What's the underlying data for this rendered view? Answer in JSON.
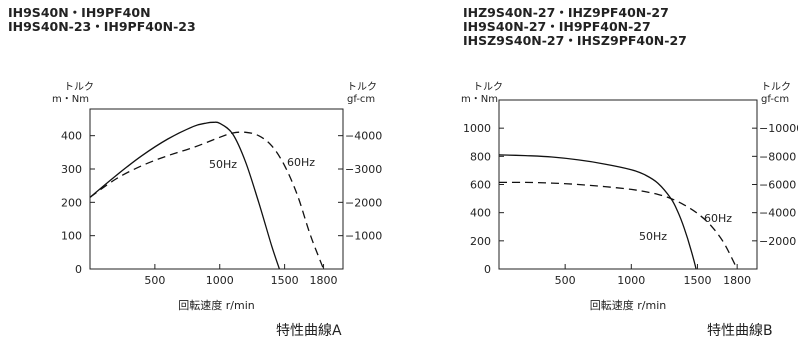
{
  "chart_data": [
    {
      "type": "line",
      "model_text": "IH9S40N・IH9PF40N\nIH9S40N-23・IH9PF40N-23",
      "caption": "特性曲線A",
      "xlabel": "回転速度 r/min",
      "y_left_label": [
        "トルク",
        "m・Nm"
      ],
      "y_right_label": [
        "トルク",
        "gf-cm"
      ],
      "x_ticks": [
        500,
        1000,
        1500,
        1800
      ],
      "x_tick_labels": [
        "500",
        "1000",
        "1500",
        "1800"
      ],
      "y_left_ticks": [
        0,
        100,
        200,
        300,
        400
      ],
      "y_left_tick_labels": [
        "0",
        "100",
        "200",
        "300",
        "400"
      ],
      "y_right_ticks": [
        1000,
        2000,
        3000,
        4000
      ],
      "y_right_tick_labels": [
        "1000",
        "2000",
        "3000",
        "4000"
      ],
      "xlim": [
        0,
        1950
      ],
      "ylim": [
        0,
        480
      ],
      "y_right_factor": 10,
      "series": [
        {
          "name": "50Hz",
          "style": "solid",
          "x": [
            0,
            200,
            400,
            600,
            800,
            900,
            950,
            1000,
            1100,
            1200,
            1300,
            1400,
            1460
          ],
          "y": [
            215,
            280,
            340,
            390,
            428,
            438,
            440,
            437,
            405,
            320,
            200,
            70,
            0
          ]
        },
        {
          "name": "60Hz",
          "style": "dashed",
          "x": [
            0,
            200,
            400,
            600,
            800,
            1000,
            1100,
            1200,
            1300,
            1400,
            1500,
            1600,
            1700,
            1800
          ],
          "y": [
            215,
            270,
            310,
            340,
            365,
            395,
            408,
            410,
            400,
            370,
            310,
            220,
            100,
            0
          ]
        }
      ]
    },
    {
      "type": "line",
      "model_text": "IHZ9S40N-27・IHZ9PF40N-27\nIH9S40N-27・IH9PF40N-27\nIHSZ9S40N-27・IHSZ9PF40N-27",
      "caption": "特性曲線B",
      "xlabel": "回転速度 r/min",
      "y_left_label": [
        "トルク",
        "m・Nm"
      ],
      "y_right_label": [
        "トルク",
        "gf-cm"
      ],
      "x_ticks": [
        500,
        1000,
        1500,
        1800
      ],
      "x_tick_labels": [
        "500",
        "1000",
        "1500",
        "1800"
      ],
      "y_left_ticks": [
        0,
        200,
        400,
        600,
        800,
        1000
      ],
      "y_left_tick_labels": [
        "0",
        "200",
        "400",
        "600",
        "800",
        "1000"
      ],
      "y_right_ticks": [
        2000,
        4000,
        6000,
        8000,
        10000
      ],
      "y_right_tick_labels": [
        "2000",
        "4000",
        "6000",
        "8000",
        "10000"
      ],
      "xlim": [
        0,
        1950
      ],
      "ylim": [
        0,
        1200
      ],
      "y_right_factor": 10,
      "series": [
        {
          "name": "50Hz",
          "style": "solid",
          "x": [
            0,
            200,
            400,
            600,
            800,
            1000,
            1100,
            1200,
            1300,
            1350,
            1400,
            1450,
            1490
          ],
          "y": [
            810,
            805,
            795,
            775,
            745,
            705,
            670,
            610,
            500,
            410,
            290,
            140,
            0
          ]
        },
        {
          "name": "60Hz",
          "style": "dashed",
          "x": [
            0,
            200,
            400,
            600,
            800,
            1000,
            1100,
            1200,
            1300,
            1400,
            1500,
            1600,
            1700,
            1800
          ],
          "y": [
            615,
            615,
            610,
            600,
            585,
            565,
            550,
            530,
            500,
            455,
            395,
            310,
            185,
            0
          ]
        }
      ]
    }
  ]
}
